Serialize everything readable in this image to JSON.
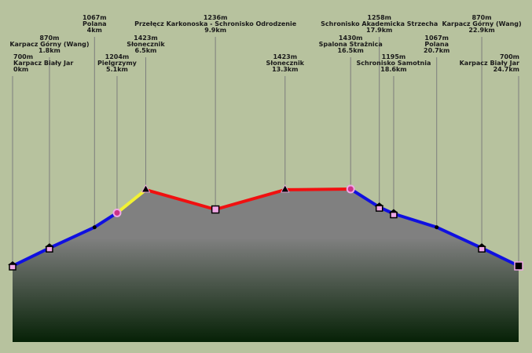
{
  "title": "",
  "chart_data": {
    "type": "area",
    "xlabel": "",
    "ylabel": "",
    "xlim": [
      0,
      24.7
    ],
    "ylim": [
      600,
      1470
    ],
    "grid": false,
    "legend": "none",
    "points": [
      {
        "name": "Karpacz Biały Jar",
        "elev": "700m",
        "dist": "0km",
        "x": 0,
        "y": 700,
        "marker": "house",
        "vline": true
      },
      {
        "name": "Karpacz Górny (Wang)",
        "elev": "870m",
        "dist": "1.8km",
        "x": 1.8,
        "y": 870,
        "marker": "house",
        "vline": true
      },
      {
        "name": "Polana",
        "elev": "1067m",
        "dist": "4km",
        "x": 4.0,
        "y": 1067,
        "marker": "dot",
        "vline": true
      },
      {
        "name": "Pielgrzymy",
        "elev": "1204m",
        "dist": "5.1km",
        "x": 5.1,
        "y": 1204,
        "marker": "circle",
        "vline": true
      },
      {
        "name": "Słonecznik",
        "elev": "1423m",
        "dist": "6.5km",
        "x": 6.5,
        "y": 1423,
        "marker": "peak",
        "vline": true
      },
      {
        "name": "Przełęcz Karkonoska - Schronisko Odrodzenie",
        "elev": "1236m",
        "dist": "9.9km",
        "x": 9.9,
        "y": 1236,
        "marker": "square",
        "vline": true
      },
      {
        "name": "Słonecznik",
        "elev": "1423m",
        "dist": "13.3km",
        "x": 13.3,
        "y": 1423,
        "marker": "peak",
        "vline": true
      },
      {
        "name": "Spalona Strażnica",
        "elev": "1430m",
        "dist": "16.5km",
        "x": 16.5,
        "y": 1430,
        "marker": "circle",
        "vline": true
      },
      {
        "name": "Schronisko Akademicka Strzecha",
        "elev": "1258m",
        "dist": "17.9km",
        "x": 17.9,
        "y": 1258,
        "marker": "house",
        "vline": true
      },
      {
        "name": "Schronisko Samotnia",
        "elev": "1195m",
        "dist": "18.6km",
        "x": 18.6,
        "y": 1195,
        "marker": "house",
        "vline": true
      },
      {
        "name": "Polana",
        "elev": "1067m",
        "dist": "20.7km",
        "x": 20.7,
        "y": 1067,
        "marker": "dot",
        "vline": true
      },
      {
        "name": "Karpacz Górny (Wang)",
        "elev": "870m",
        "dist": "22.9km",
        "x": 22.9,
        "y": 870,
        "marker": "house",
        "vline": true
      },
      {
        "name": "Karpacz Biały Jar",
        "elev": "700m",
        "dist": "24.7km",
        "x": 24.7,
        "y": 700,
        "marker": "end",
        "vline": true
      }
    ],
    "segments": [
      {
        "from": 0,
        "to": 2,
        "color": "#1010e0"
      },
      {
        "from": 2,
        "to": 3,
        "color": "#1010e0"
      },
      {
        "from": 3,
        "to": 4,
        "color": "#f2f233"
      },
      {
        "from": 4,
        "to": 5,
        "color": "#f01010"
      },
      {
        "from": 5,
        "to": 6,
        "color": "#f01010"
      },
      {
        "from": 6,
        "to": 7,
        "color": "#f01010"
      },
      {
        "from": 7,
        "to": 12,
        "color": "#1010e0"
      }
    ],
    "colors": {
      "background": "#b7c29e",
      "area_top": "#808080",
      "area_bottom": "#062106",
      "vline": "#7d7d7d",
      "marker_fill": "#f0a8e6",
      "marker_stroke": "#000000"
    }
  }
}
